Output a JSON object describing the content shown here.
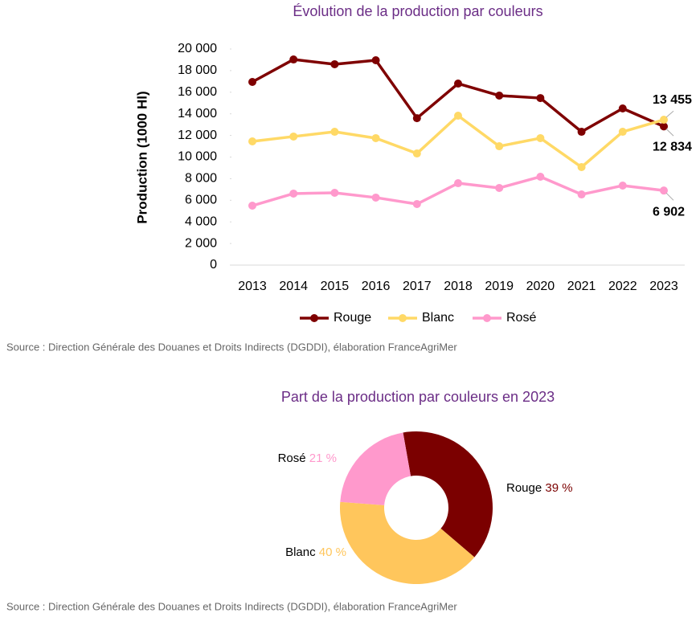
{
  "chart_data": [
    {
      "type": "line",
      "title": "Évolution de la production par couleurs",
      "y_label": "Production (1000 Hl)",
      "categories": [
        "2013",
        "2014",
        "2015",
        "2016",
        "2017",
        "2018",
        "2019",
        "2020",
        "2021",
        "2022",
        "2023"
      ],
      "series": [
        {
          "name": "Rouge",
          "color": "#7f0000",
          "values": [
            16950,
            19030,
            18590,
            18960,
            13600,
            16800,
            15690,
            15460,
            12340,
            14500,
            12834
          ],
          "value_labels": [
            null,
            null,
            null,
            null,
            null,
            null,
            null,
            null,
            null,
            null,
            "12 834"
          ]
        },
        {
          "name": "Blanc",
          "color": "#ffd966",
          "values": [
            11450,
            11900,
            12340,
            11750,
            10330,
            13830,
            11000,
            11750,
            9070,
            12340,
            13455
          ],
          "value_labels": [
            null,
            null,
            null,
            null,
            null,
            null,
            null,
            null,
            null,
            null,
            "13 455"
          ]
        },
        {
          "name": "Rosé",
          "color": "#ff99cc",
          "values": [
            5500,
            6620,
            6690,
            6250,
            5650,
            7580,
            7140,
            8180,
            6540,
            7360,
            6902
          ],
          "value_labels": [
            null,
            null,
            null,
            null,
            null,
            null,
            null,
            null,
            null,
            null,
            "6 902"
          ]
        }
      ],
      "ylim": [
        0,
        20000
      ],
      "yticks": [
        0,
        {
          "value": 2000,
          "label": "2 000"
        },
        {
          "value": 4000,
          "label": "4 000"
        },
        {
          "value": 6000,
          "label": "6 000"
        },
        {
          "value": 8000,
          "label": "8 000"
        },
        {
          "value": 10000,
          "label": "10 000"
        },
        {
          "value": 12000,
          "label": "12 000"
        },
        {
          "value": 14000,
          "label": "14 000"
        },
        {
          "value": 16000,
          "label": "16 000"
        },
        {
          "value": 18000,
          "label": "18 000"
        },
        {
          "value": 20000,
          "label": "20 000"
        }
      ],
      "grid": false,
      "legend": "bottom",
      "source": "Source : Direction Générale des Douanes et Droits Indirects (DGDDI), élaboration FranceAgriMer"
    },
    {
      "type": "donut",
      "title": "Part de la production par couleurs en 2023",
      "categories": [
        "Rouge",
        "Blanc",
        "Rosé"
      ],
      "values": [
        39,
        40,
        21
      ],
      "value_labels": [
        "39 %",
        "40 %",
        "21 %"
      ],
      "colors": [
        "#7b0000",
        "#ffc65c",
        "#ff99cc"
      ],
      "source": "Source : Direction Générale des Douanes et Droits Indirects (DGDDI), élaboration FranceAgriMer"
    }
  ]
}
